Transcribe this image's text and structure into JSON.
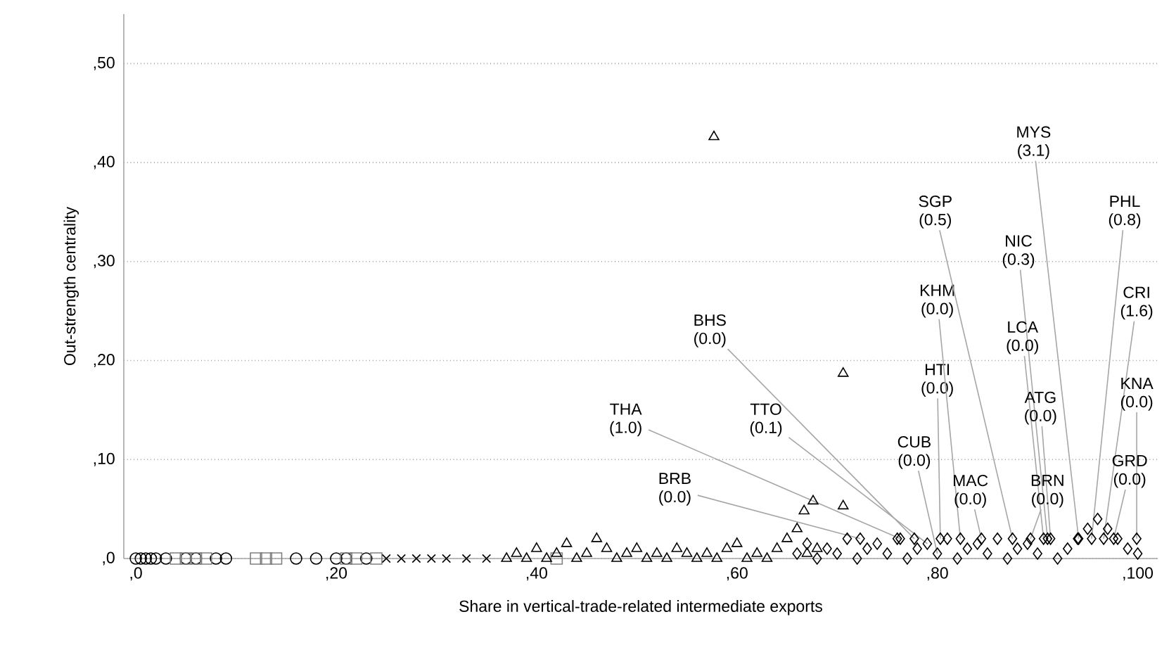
{
  "chart_data": {
    "type": "scatter",
    "xlabel": "Share in vertical-trade-related intermediate exports",
    "ylabel": "Out-strength centrality",
    "xlim": [
      -1.2,
      102
    ],
    "ylim": [
      0,
      55
    ],
    "xticks": [
      {
        "value": 0,
        "label": ",0"
      },
      {
        "value": 20,
        "label": ",20"
      },
      {
        "value": 40,
        "label": ",40"
      },
      {
        "value": 60,
        "label": ",60"
      },
      {
        "value": 80,
        "label": ",80"
      },
      {
        "value": 100,
        "label": ",100"
      }
    ],
    "yticks": [
      {
        "value": 0,
        "label": ",0"
      },
      {
        "value": 10,
        "label": ",10"
      },
      {
        "value": 20,
        "label": ",20"
      },
      {
        "value": 30,
        "label": ",30"
      },
      {
        "value": 40,
        "label": ",40"
      },
      {
        "value": 50,
        "label": ",50"
      }
    ],
    "grid": "y",
    "series": [
      {
        "marker": "circle",
        "color": "#000000",
        "x": [
          0,
          0.5,
          1,
          1.5,
          2,
          3,
          5,
          6,
          8,
          9,
          16,
          18,
          20,
          21,
          23
        ],
        "values": [
          0,
          0,
          0,
          0,
          0,
          0,
          0,
          0,
          0,
          0,
          0,
          0,
          0,
          0,
          0
        ]
      },
      {
        "marker": "square",
        "color": "#808080",
        "x": [
          4,
          5,
          6,
          7,
          12,
          13,
          14,
          21,
          22,
          24,
          42
        ],
        "values": [
          0,
          0,
          0,
          0,
          0,
          0,
          0,
          0,
          0,
          0,
          0
        ]
      },
      {
        "marker": "cross",
        "color": "#000000",
        "x": [
          25,
          26.5,
          28,
          29.5,
          31,
          33,
          35
        ],
        "values": [
          0,
          0,
          0,
          0,
          0,
          0,
          0
        ]
      },
      {
        "marker": "triangle",
        "color": "#000000",
        "x": [
          37,
          38,
          39,
          40,
          41,
          42,
          43,
          44,
          45,
          46,
          47,
          48,
          49,
          50,
          51,
          52,
          53,
          54,
          55,
          56,
          57,
          58,
          59,
          60,
          61,
          62,
          63,
          64,
          65,
          66,
          67,
          68,
          57.7,
          70.6,
          67.6,
          70.6,
          66.7
        ],
        "values": [
          0,
          0.5,
          0,
          1,
          0,
          0.5,
          1.5,
          0,
          0.5,
          2,
          1,
          0,
          0.5,
          1,
          0,
          0.5,
          0,
          1,
          0.5,
          0,
          0.5,
          0,
          1,
          1.5,
          0,
          0.5,
          0,
          1,
          2,
          3,
          0.5,
          1,
          42.6,
          18.7,
          5.8,
          5.3,
          4.8
        ]
      },
      {
        "marker": "diamond",
        "color": "#000000",
        "x": [
          66,
          67,
          68,
          69,
          70,
          71,
          72,
          73,
          74,
          75,
          76,
          77,
          78,
          79,
          80,
          81,
          82,
          83,
          84,
          85,
          86,
          87,
          88,
          89,
          90,
          91,
          92,
          93,
          94,
          95,
          96,
          97,
          98,
          99,
          100,
          72.3,
          76.3,
          77.7,
          80.3,
          82.3,
          84.4,
          87.5,
          94.1,
          90.6,
          91.3,
          89.3,
          95.4,
          96.6,
          99.9,
          97.6
        ],
        "values": [
          0.5,
          1.5,
          0,
          1,
          0.5,
          2,
          0,
          1,
          1.5,
          0.5,
          2,
          0,
          1,
          1.5,
          0.5,
          2,
          0,
          1,
          1.5,
          0.5,
          2,
          0,
          1,
          1.5,
          0.5,
          2,
          0,
          1,
          2,
          3,
          4,
          3,
          2,
          1,
          0.5,
          2,
          2,
          2,
          2,
          2,
          2,
          2,
          2,
          2,
          2,
          2,
          2,
          2,
          2,
          2
        ]
      }
    ],
    "annotations": [
      {
        "text": "BRB (0.0)",
        "x": 72.3,
        "y": 2
      },
      {
        "text": "THA (1.0)",
        "x": 76.3,
        "y": 2
      },
      {
        "text": "BHS (0.0)",
        "x": 77.7,
        "y": 2
      },
      {
        "text": "TTO (0.1)",
        "x": 79,
        "y": 1.5
      },
      {
        "text": "CUB (0.0)",
        "x": 80,
        "y": 0.5
      },
      {
        "text": "HTI (0.0)",
        "x": 80.3,
        "y": 2
      },
      {
        "text": "KHM (0.0)",
        "x": 82.3,
        "y": 2
      },
      {
        "text": "MAC (0.0)",
        "x": 84.4,
        "y": 2
      },
      {
        "text": "SGP (0.5)",
        "x": 87.5,
        "y": 2
      },
      {
        "text": "MYS (3.1)",
        "x": 94.1,
        "y": 2
      },
      {
        "text": "NIC (0.3)",
        "x": 91,
        "y": 2
      },
      {
        "text": "LCA (0.0)",
        "x": 90.6,
        "y": 2
      },
      {
        "text": "ATG (0.0)",
        "x": 91.3,
        "y": 2
      },
      {
        "text": "BRN (0.0)",
        "x": 89.3,
        "y": 2
      },
      {
        "text": "PHL (0.8)",
        "x": 95.4,
        "y": 2
      },
      {
        "text": "CRI (1.6)",
        "x": 96.6,
        "y": 2
      },
      {
        "text": "KNA (0.0)",
        "x": 99.9,
        "y": 2
      },
      {
        "text": "GRD (0.0)",
        "x": 97.6,
        "y": 2
      }
    ]
  }
}
